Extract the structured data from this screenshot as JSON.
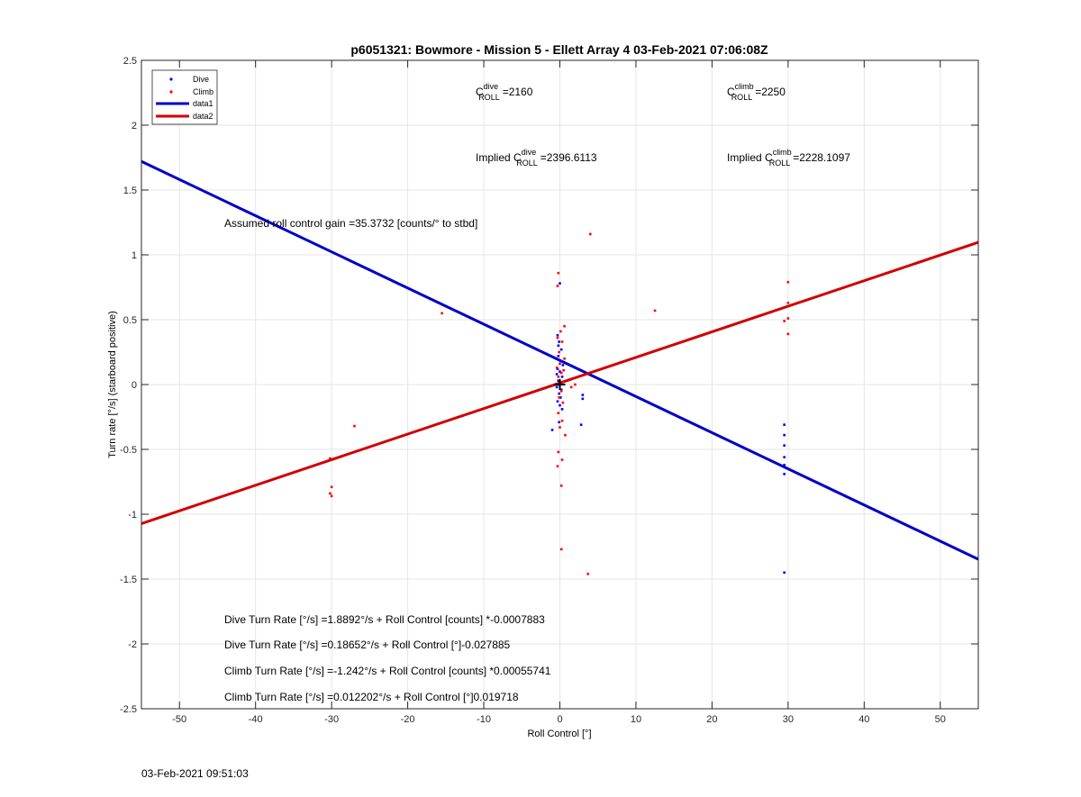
{
  "chart_data": {
    "type": "scatter",
    "title": "p6051321: Bowmore - Mission 5 - Ellett Array 4 03-Feb-2021 07:06:08Z",
    "xlabel": "Roll Control [°]",
    "ylabel": "Turn rate [°/s] (starboard positive)",
    "xlim": [
      -55,
      55
    ],
    "ylim": [
      -2.5,
      2.5
    ],
    "xticks": [
      -50,
      -40,
      -30,
      -20,
      -10,
      0,
      10,
      20,
      30,
      40,
      50
    ],
    "yticks": [
      -2.5,
      -2,
      -1.5,
      -1,
      -0.5,
      0,
      0.5,
      1,
      1.5,
      2,
      2.5
    ],
    "xtick_labels": [
      "-50",
      "-40",
      "-30",
      "-20",
      "-10",
      "0",
      "10",
      "20",
      "30",
      "40",
      "50"
    ],
    "ytick_labels": [
      "-2.5",
      "-2",
      "-1.5",
      "-1",
      "-0.5",
      "0",
      "0.5",
      "1",
      "1.5",
      "2",
      "2.5"
    ],
    "grid": true,
    "legend_position": "top-left",
    "series": [
      {
        "name": "Dive",
        "kind": "scatter",
        "color": "#0000ff",
        "points": [
          [
            -0.3,
            0.38
          ],
          [
            -0.1,
            0.33
          ],
          [
            0.2,
            0.27
          ],
          [
            -0.2,
            0.22
          ],
          [
            0.1,
            0.18
          ],
          [
            -0.3,
            0.12
          ],
          [
            0.0,
            0.1
          ],
          [
            0.3,
            0.06
          ],
          [
            -0.2,
            0.03
          ],
          [
            0.0,
            0.01
          ],
          [
            -0.4,
            -0.02
          ],
          [
            0.2,
            -0.04
          ],
          [
            -0.1,
            -0.07
          ],
          [
            0.1,
            -0.1
          ],
          [
            -0.3,
            -0.13
          ],
          [
            0.0,
            -0.16
          ],
          [
            0.3,
            -0.19
          ],
          [
            -0.2,
            0.3
          ],
          [
            0.4,
            0.15
          ],
          [
            -0.4,
            0.08
          ],
          [
            0.0,
            0.78
          ],
          [
            -0.1,
            -0.29
          ],
          [
            -1.0,
            -0.35
          ],
          [
            3.0,
            -0.08
          ],
          [
            3.0,
            -0.11
          ],
          [
            2.8,
            -0.31
          ],
          [
            29.5,
            -0.31
          ],
          [
            29.5,
            -0.39
          ],
          [
            29.5,
            -0.47
          ],
          [
            29.5,
            -0.56
          ],
          [
            29.5,
            -0.62
          ],
          [
            29.5,
            -0.69
          ],
          [
            29.5,
            -1.45
          ]
        ]
      },
      {
        "name": "Climb",
        "kind": "scatter",
        "color": "#ff0000",
        "points": [
          [
            -30.2,
            -0.57
          ],
          [
            -30.0,
            -0.79
          ],
          [
            -30.2,
            -0.84
          ],
          [
            -30.0,
            -0.86
          ],
          [
            -27.0,
            -0.32
          ],
          [
            -15.5,
            0.55
          ],
          [
            4.0,
            1.16
          ],
          [
            12.5,
            0.57
          ],
          [
            30.0,
            0.79
          ],
          [
            30.0,
            0.63
          ],
          [
            30.0,
            0.51
          ],
          [
            29.5,
            0.49
          ],
          [
            30.0,
            0.39
          ],
          [
            -0.2,
            0.86
          ],
          [
            -0.3,
            0.76
          ],
          [
            0.6,
            0.45
          ],
          [
            0.1,
            0.41
          ],
          [
            -0.3,
            0.36
          ],
          [
            0.3,
            0.33
          ],
          [
            -0.1,
            0.25
          ],
          [
            0.6,
            0.2
          ],
          [
            0.0,
            0.16
          ],
          [
            -0.4,
            0.13
          ],
          [
            0.5,
            0.11
          ],
          [
            0.2,
            0.09
          ],
          [
            -0.2,
            0.06
          ],
          [
            0.4,
            0.02
          ],
          [
            -0.3,
            0.0
          ],
          [
            0.2,
            -0.05
          ],
          [
            -0.1,
            -0.1
          ],
          [
            0.4,
            -0.14
          ],
          [
            -0.2,
            -0.22
          ],
          [
            0.3,
            -0.28
          ],
          [
            0.0,
            -0.33
          ],
          [
            0.7,
            -0.39
          ],
          [
            -0.2,
            -0.52
          ],
          [
            0.3,
            -0.58
          ],
          [
            -0.3,
            -0.63
          ],
          [
            0.2,
            -0.78
          ],
          [
            0.2,
            -1.27
          ],
          [
            3.7,
            -1.46
          ],
          [
            2.0,
            0.0
          ],
          [
            1.5,
            -0.02
          ]
        ]
      },
      {
        "name": "data1",
        "kind": "line",
        "color": "#0000c8",
        "slope": -0.027885,
        "intercept": 0.18652
      },
      {
        "name": "data2",
        "kind": "line",
        "color": "#d00000",
        "slope": 0.019718,
        "intercept": 0.012202
      }
    ],
    "marker": {
      "x": 0,
      "y": 0,
      "symbol": "+"
    },
    "annotations": {
      "c_roll_dive": {
        "prefix": "C",
        "sup": "dive",
        "sub": "ROLL",
        "value": "=2160"
      },
      "c_roll_climb": {
        "prefix": "C",
        "sup": "climb",
        "sub": "ROLL",
        "value": "=2250"
      },
      "implied_dive": {
        "prefix": "Implied C",
        "sup": "dive",
        "sub": "ROLL",
        "value": "=2396.6113"
      },
      "implied_climb": {
        "prefix": "Implied C",
        "sup": "climb",
        "sub": "ROLL",
        "value": "=2228.1097"
      },
      "gain": "Assumed roll control gain =35.3732 [counts/° to stbd]",
      "eq_dive_counts": "Dive Turn Rate [°/s] =1.8892°/s + Roll Control [counts] *-0.0007883",
      "eq_dive_deg": "Dive Turn Rate [°/s] =0.18652°/s + Roll Control [°]-0.027885",
      "eq_climb_counts": "Climb Turn Rate [°/s] =-1.242°/s + Roll Control [counts] *0.00055741",
      "eq_climb_deg": "Climb Turn Rate [°/s] =0.012202°/s + Roll Control [°]0.019718"
    }
  },
  "footer": {
    "timestamp": "03-Feb-2021 09:51:03"
  }
}
